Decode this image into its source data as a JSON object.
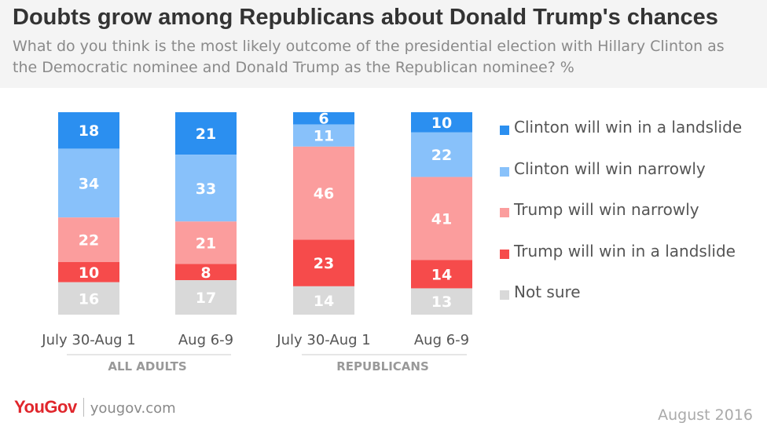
{
  "title": "Doubts grow among Republicans about Donald Trump's chances",
  "subtitle": "What do you think is the most likely outcome of the presidential election with Hillary Clinton as the Democratic nominee and Donald Trump as the Republican nominee? %",
  "brand": {
    "logo": "YouGov",
    "url": "yougov.com"
  },
  "date_label": "August 2016",
  "colors": {
    "clinton_landslide": "#2b8ff0",
    "clinton_narrow": "#88c1fa",
    "trump_narrow": "#fb9d9d",
    "trump_landslide": "#f64b4b",
    "not_sure": "#d9d9d9"
  },
  "chart_data": {
    "type": "bar",
    "stacked": true,
    "categories": [
      "July 30-Aug 1",
      "Aug 6-9",
      "July 30-Aug 1",
      "Aug 6-9"
    ],
    "groups": [
      {
        "label": "ALL ADULTS",
        "categories": [
          0,
          1
        ]
      },
      {
        "label": "REPUBLICANS",
        "categories": [
          2,
          3
        ]
      }
    ],
    "series": [
      {
        "name": "Clinton will win in a landslide",
        "color": "#2b8ff0",
        "values": [
          18,
          21,
          6,
          10
        ]
      },
      {
        "name": "Clinton will win narrowly",
        "color": "#88c1fa",
        "values": [
          34,
          33,
          11,
          22
        ]
      },
      {
        "name": "Trump will win narrowly",
        "color": "#fb9d9d",
        "values": [
          22,
          21,
          46,
          41
        ]
      },
      {
        "name": "Trump will win in a landslide",
        "color": "#f64b4b",
        "values": [
          10,
          8,
          23,
          14
        ]
      },
      {
        "name": "Not sure",
        "color": "#d9d9d9",
        "values": [
          16,
          17,
          14,
          13
        ]
      }
    ],
    "legend": "right",
    "grid": false,
    "ylim": [
      0,
      100
    ]
  }
}
